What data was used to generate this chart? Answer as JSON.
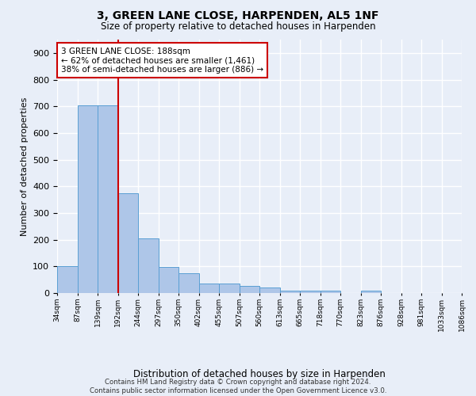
{
  "title": "3, GREEN LANE CLOSE, HARPENDEN, AL5 1NF",
  "subtitle": "Size of property relative to detached houses in Harpenden",
  "xlabel": "Distribution of detached houses by size in Harpenden",
  "ylabel": "Number of detached properties",
  "bin_labels": [
    "34sqm",
    "87sqm",
    "139sqm",
    "192sqm",
    "244sqm",
    "297sqm",
    "350sqm",
    "402sqm",
    "455sqm",
    "507sqm",
    "560sqm",
    "613sqm",
    "665sqm",
    "718sqm",
    "770sqm",
    "823sqm",
    "876sqm",
    "928sqm",
    "981sqm",
    "1033sqm",
    "1086sqm"
  ],
  "bar_heights": [
    100,
    705,
    705,
    375,
    205,
    97,
    73,
    35,
    35,
    27,
    22,
    10,
    10,
    8,
    0,
    10,
    0,
    0,
    0,
    0
  ],
  "bar_color": "#aec6e8",
  "bar_edge_color": "#5a9fd4",
  "vline_color": "#cc0000",
  "annotation_text": "3 GREEN LANE CLOSE: 188sqm\n← 62% of detached houses are smaller (1,461)\n38% of semi-detached houses are larger (886) →",
  "annotation_box_color": "#ffffff",
  "annotation_box_edge": "#cc0000",
  "ylim": [
    0,
    950
  ],
  "yticks": [
    0,
    100,
    200,
    300,
    400,
    500,
    600,
    700,
    800,
    900
  ],
  "footer": "Contains HM Land Registry data © Crown copyright and database right 2024.\nContains public sector information licensed under the Open Government Licence v3.0.",
  "bg_color": "#e8eef8",
  "grid_color": "#ffffff"
}
